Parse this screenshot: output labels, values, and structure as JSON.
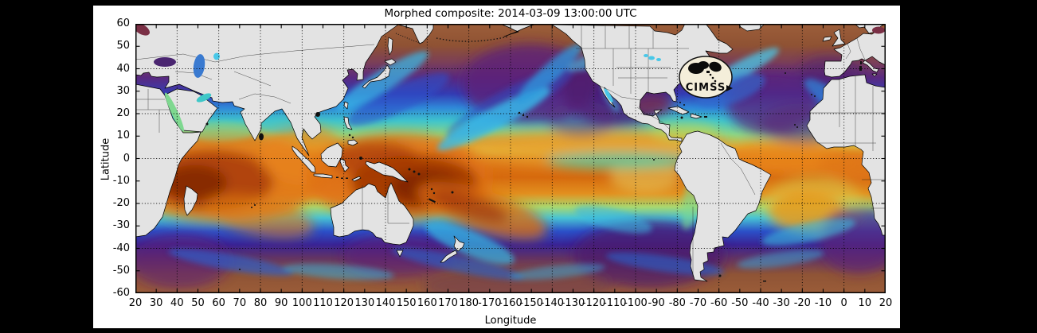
{
  "window": {
    "background": "#000000"
  },
  "figure": {
    "background": "#ffffff"
  },
  "chart": {
    "title": "Morphed composite: 2014-03-09 13:00:00 UTC",
    "xlabel": "Longitude",
    "ylabel": "Latitude"
  },
  "logo": {
    "text": "CIMSS"
  },
  "chart_data": {
    "type": "heatmap",
    "title": "Morphed composite: 2014-03-09 13:00:00 UTC",
    "xlabel": "Longitude",
    "ylabel": "Latitude",
    "x_tick_labels": [
      "20",
      "30",
      "40",
      "50",
      "60",
      "70",
      "80",
      "90",
      "100",
      "110",
      "120",
      "130",
      "140",
      "150",
      "160",
      "170",
      "180",
      "-170",
      "-160",
      "-150",
      "-140",
      "-130",
      "-120",
      "-110",
      "-100",
      "-90",
      "-80",
      "-70",
      "-60",
      "-50",
      "-40",
      "-30",
      "-20",
      "-10",
      "0",
      "10",
      "20"
    ],
    "y_tick_labels": [
      "60",
      "50",
      "40",
      "30",
      "20",
      "10",
      "0",
      "-10",
      "-20",
      "-30",
      "-40",
      "-50",
      "-60"
    ],
    "x_axis_note": "global Pacific-centered longitude, eastward from 20E through 180 back to 20E",
    "ylim": [
      -60,
      60
    ],
    "grid": "black dotted gridlines every 20 degrees, inward black ticks every 10 degrees",
    "projection": "equirectangular",
    "land_color": "#e3e3e3",
    "coastline_color": "#000000",
    "very_dry_high_latitude_color": "#9a5c38",
    "palette_low_to_high": [
      "#5a1f7e",
      "#2b3fc0",
      "#35b6e0",
      "#7fd87f",
      "#e8d060",
      "#f0a028",
      "#e07818",
      "#b34a06",
      "#7a2200"
    ],
    "features": [
      "dark red-brown moisture maxima over the equatorial Indian Ocean and the western Pacific warm pool",
      "narrow orange ITCZ band near 5-10N across the eastern Pacific and Atlantic",
      "South Pacific Convergence Zone extending southeast from New Guinea",
      "orange-yellow moisture swirl in the South Atlantic off Brazil",
      "cyan-blue moisture plumes curling into the North Pacific and North Atlantic",
      "purple dry zones over subtropical gyres, Mediterranean and southeast Pacific",
      "brown very dry air poleward of about 45 degrees in both hemispheres"
    ]
  }
}
